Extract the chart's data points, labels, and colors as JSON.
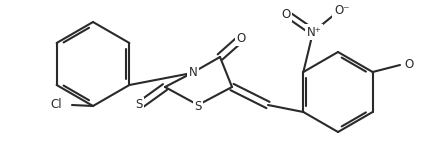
{
  "background_color": "#ffffff",
  "line_color": "#2a2a2a",
  "line_width": 1.5,
  "font_size": 8.5,
  "figsize": [
    4.32,
    1.57
  ],
  "dpi": 100,
  "xlim": [
    0,
    432
  ],
  "ylim": [
    0,
    157
  ]
}
